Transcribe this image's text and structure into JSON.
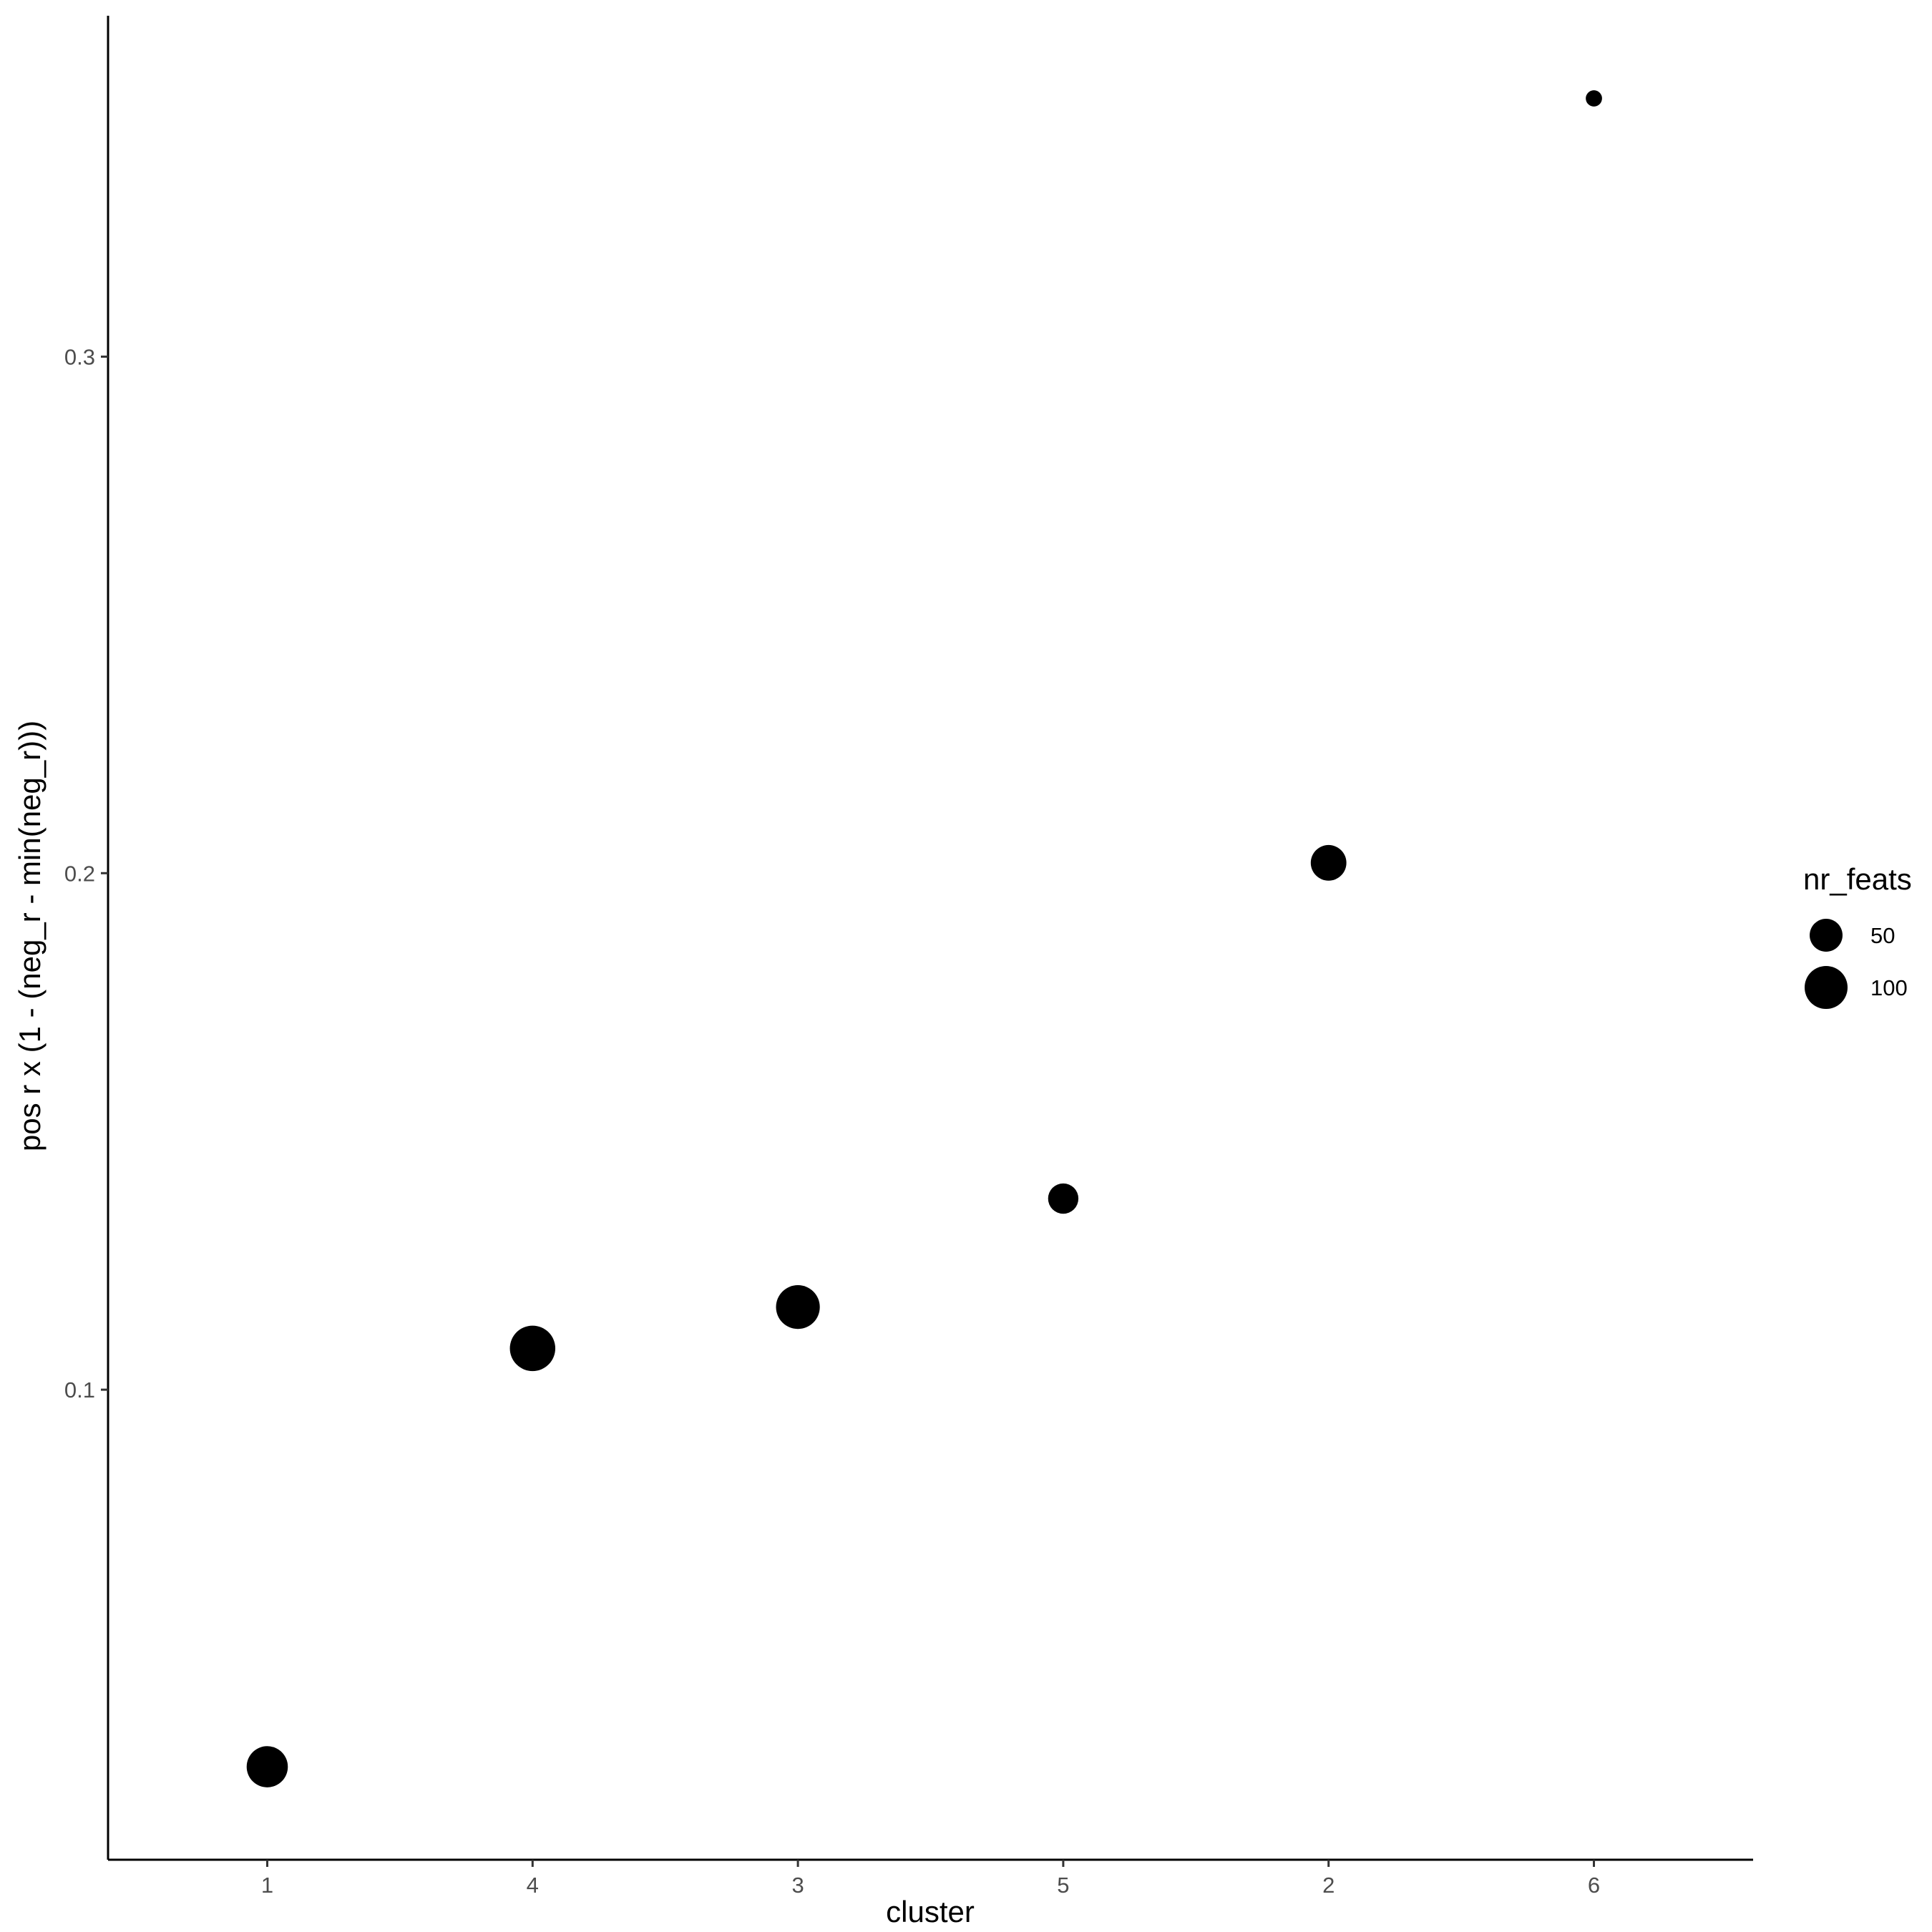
{
  "chart_data": {
    "type": "scatter",
    "title": "",
    "xlabel": "cluster",
    "ylabel": "pos r x (1 - (neg_r - min(neg_r)))",
    "categories": [
      "1",
      "4",
      "3",
      "5",
      "2",
      "6"
    ],
    "ylim": [
      0.009,
      0.366
    ],
    "yticks": [
      0.1,
      0.2,
      0.3
    ],
    "ytick_labels": [
      "0.1",
      "0.2",
      "0.3"
    ],
    "grid": false,
    "points": [
      {
        "x": "1",
        "y": 0.027,
        "nr_feats": 90
      },
      {
        "x": "4",
        "y": 0.108,
        "nr_feats": 115
      },
      {
        "x": "3",
        "y": 0.116,
        "nr_feats": 105
      },
      {
        "x": "5",
        "y": 0.137,
        "nr_feats": 40
      },
      {
        "x": "2",
        "y": 0.202,
        "nr_feats": 62
      },
      {
        "x": "6",
        "y": 0.35,
        "nr_feats": 5
      }
    ],
    "size_legend": {
      "title": "nr_feats",
      "placement": "right",
      "entries": [
        {
          "label": "50",
          "value": 50
        },
        {
          "label": "100",
          "value": 100
        }
      ]
    },
    "point_color": "#000000"
  }
}
